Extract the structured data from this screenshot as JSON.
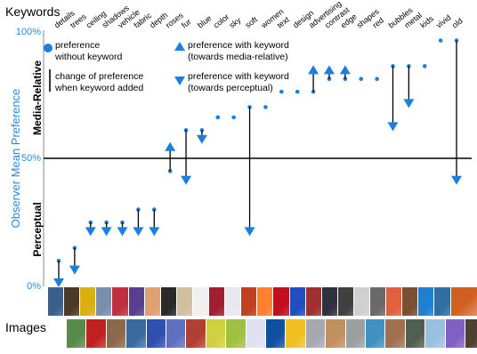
{
  "header": {
    "keywords_label": "Keywords",
    "images_label": "Images"
  },
  "axis": {
    "ylabel": "Observer Mean Preference",
    "y_ticks": [
      "100%",
      "50%",
      "0%"
    ],
    "region_top": "Media-Relative",
    "region_bottom": "Perceptual"
  },
  "legend": {
    "pref_line1": "preference",
    "pref_line2": "without keyword",
    "change_line1": "change of preference",
    "change_line2": "when keyword added",
    "up_line1": "preference with keyword",
    "up_line2": "(towards media-relative)",
    "down_line1": "preference with keyword",
    "down_line2": "(towards perceptual)"
  },
  "colors": {
    "marker": "#1a7fe0",
    "axis_text": "#2a8be0",
    "arrow_line": "#000000",
    "midline": "#000000"
  },
  "chart_data": {
    "type": "scatter",
    "title": "",
    "xlabel": "Keywords",
    "ylabel": "Observer Mean Preference",
    "ylim": [
      0,
      100
    ],
    "midline": 50,
    "categories": [
      "details",
      "trees",
      "ceiling",
      "shadows",
      "vehicle",
      "fabric",
      "depth",
      "roses",
      "fur",
      "blue",
      "color",
      "sky",
      "soft",
      "women",
      "text",
      "design",
      "advertising",
      "contrast",
      "edge",
      "shapes",
      "red",
      "bubbles",
      "metal",
      "kids",
      "vivid",
      "old"
    ],
    "series": [
      {
        "name": "preference without keyword",
        "values": [
          10,
          15,
          25,
          25,
          25,
          30,
          30,
          45,
          61,
          61,
          66,
          66,
          70,
          70,
          76,
          76,
          76,
          81,
          81,
          81,
          81,
          86,
          86,
          86,
          96,
          96
        ]
      },
      {
        "name": "preference with keyword",
        "values": [
          0,
          5,
          20,
          20,
          20,
          20,
          20,
          56,
          40,
          56,
          66,
          66,
          20,
          70,
          76,
          76,
          86,
          86,
          86,
          81,
          81,
          61,
          70,
          86,
          96,
          40
        ]
      }
    ]
  },
  "thumbs_top_colors": [
    "#3a5f8a",
    "#4a3a2a",
    "#d8b010",
    "#7a8fb0",
    "#c03040",
    "#5a3f8f",
    "#e0a070",
    "#2a2a2a",
    "#d0c0a0",
    "#f0f0f0",
    "#a02030",
    "#e8e8f0",
    "#c04020",
    "#ff8030",
    "#c01020",
    "#2050c0",
    "#a03030",
    "#303040",
    "#404040",
    "#d0d0d0",
    "#6a6a6a",
    "#e06040",
    "#7a5030",
    "#2080d0",
    "#3070a0",
    "#d06020"
  ],
  "thumbs_bottom_colors": [
    "#5a8a4a",
    "#c02020",
    "#8a6a4a",
    "#3a6aa0",
    "#3050b0",
    "#6070c0",
    "#b04030",
    "#d0d040",
    "#a0c040",
    "#e0e0f0",
    "#1050a0",
    "#f0c020",
    "#a8a8b0",
    "#c09060",
    "#9aa0a0",
    "#4090c0",
    "#a07050",
    "#506050",
    "#9ac0e0",
    "#8060c0",
    "#504030"
  ]
}
